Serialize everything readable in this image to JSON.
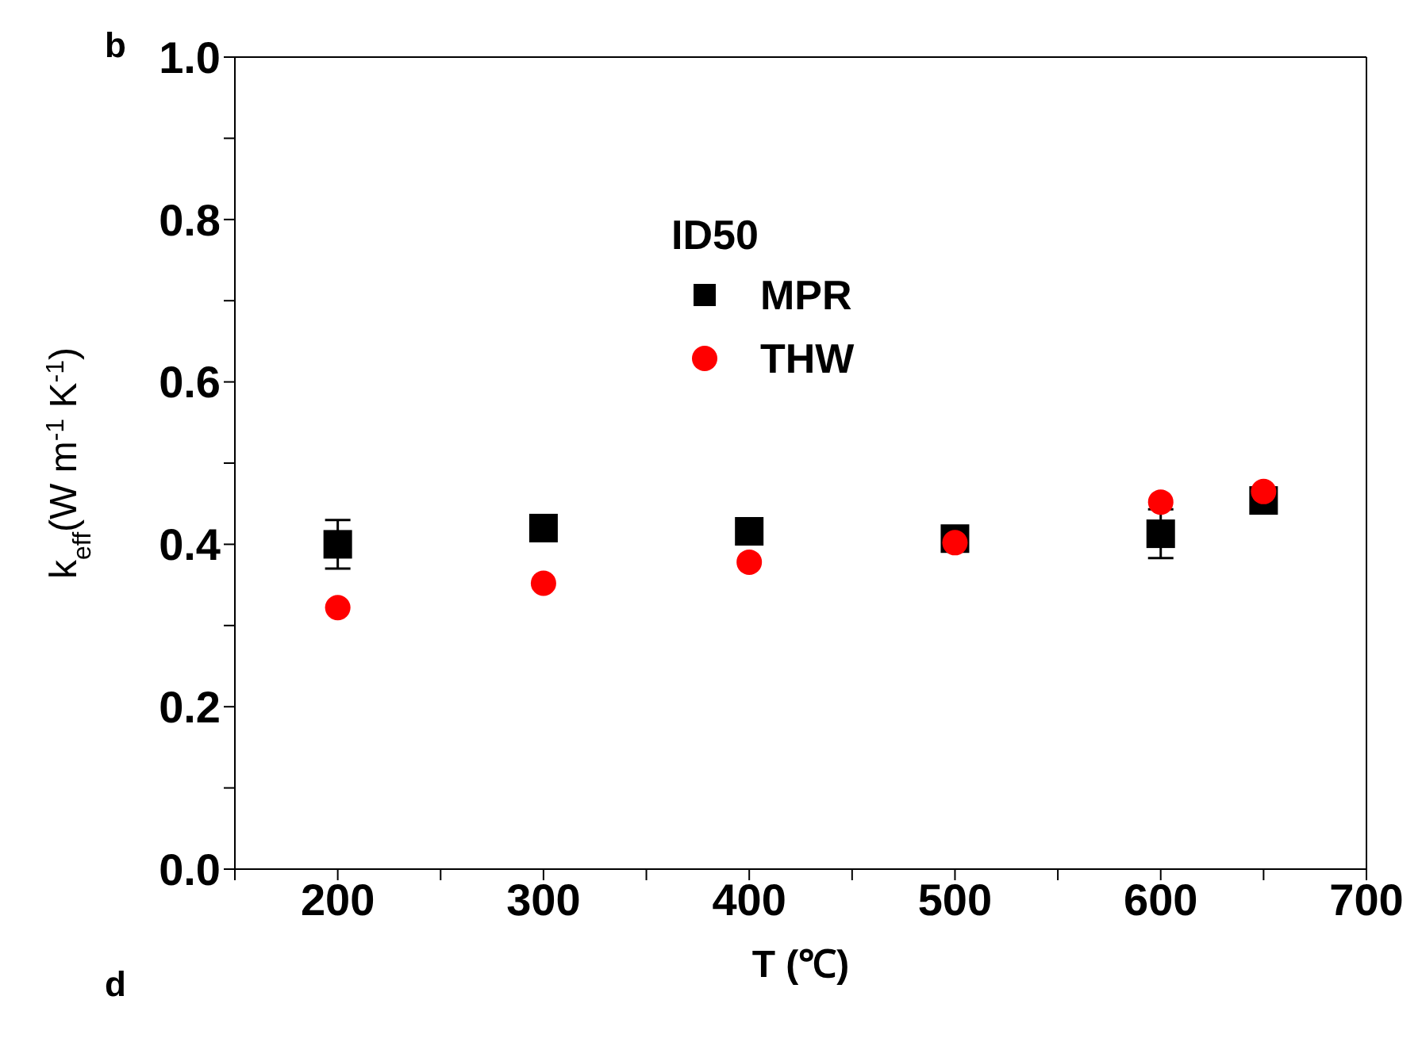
{
  "chart_data": {
    "type": "scatter",
    "xlabel": "T (℃)",
    "ylabel": "k$_{eff}$(W m$^{-1}$ K$^{-1}$)",
    "legend_title": "ID50",
    "legend": "top",
    "x": [
      200,
      300,
      400,
      500,
      600,
      650
    ],
    "series": [
      {
        "name": "MPR",
        "color": "#000000",
        "marker": "square",
        "values": [
          0.4,
          0.42,
          0.416,
          0.407,
          0.413,
          0.454
        ],
        "errors": [
          0.03,
          0.01,
          0.01,
          0.01,
          0.03,
          null
        ]
      },
      {
        "name": "THW",
        "color": "#ff0000",
        "marker": "circle",
        "values": [
          0.322,
          0.352,
          0.378,
          0.402,
          0.452,
          0.465
        ]
      }
    ],
    "xlim": [
      150,
      700
    ],
    "xticks": [
      {
        "value": 150,
        "label": null
      },
      200,
      {
        "value": 250,
        "label": null
      },
      300,
      {
        "value": 350,
        "label": null
      },
      400,
      {
        "value": 450,
        "label": null
      },
      500,
      {
        "value": 550,
        "label": null
      },
      600,
      {
        "value": 650,
        "label": null
      },
      700
    ],
    "ylim": [
      0,
      1
    ],
    "yticks": [
      {
        "value": 0,
        "label": "0.0"
      },
      {
        "value": 0.1,
        "label": null
      },
      {
        "value": 0.2,
        "label": "0.2"
      },
      {
        "value": 0.3,
        "label": null
      },
      {
        "value": 0.4,
        "label": "0.4"
      },
      {
        "value": 0.5,
        "label": null
      },
      {
        "value": 0.6,
        "label": "0.6"
      },
      {
        "value": 0.7,
        "label": null
      },
      {
        "value": 0.8,
        "label": "0.8"
      },
      {
        "value": 0.9,
        "label": null
      },
      {
        "value": 1,
        "label": "1.0"
      }
    ],
    "grid": false,
    "annotations": [
      "b",
      "d"
    ]
  }
}
